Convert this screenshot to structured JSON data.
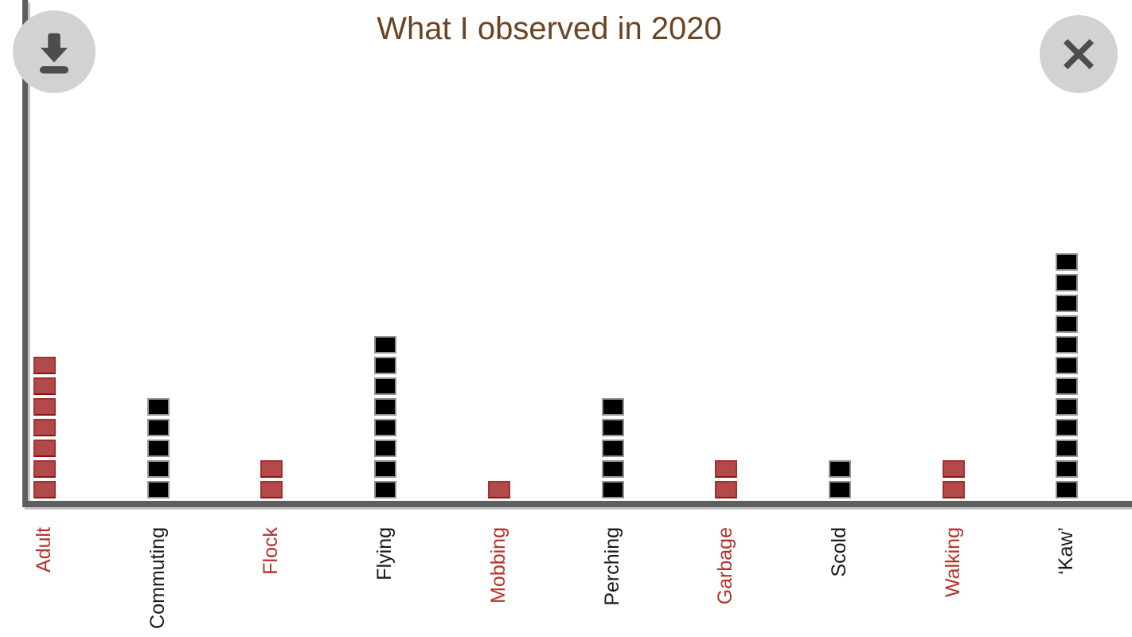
{
  "title": "What I observed in 2020",
  "toolbar": {
    "download_icon": "download-icon",
    "close_icon": "close-icon"
  },
  "colors": {
    "red": "#b24a4a",
    "red_border": "#a33030",
    "black": "#000000",
    "black_border": "#949494",
    "axis": "#5f5f5f",
    "title": "#6b4423",
    "label_red": "#b5332a",
    "label_black": "#1a1a1a",
    "button_bg": "#d2d2d2",
    "button_icon": "#4d4d4d"
  },
  "chart_data": {
    "type": "bar",
    "style": "waffle-stacked-squares",
    "title": "What I observed in 2020",
    "categories": [
      "Adult",
      "Commuting",
      "Flock",
      "Flying",
      "Mobbing",
      "Perching",
      "Garbage",
      "Scold",
      "Walking",
      "‘Kaw’"
    ],
    "values": [
      7,
      5,
      2,
      8,
      1,
      5,
      2,
      2,
      2,
      12
    ],
    "bar_colors": [
      "red",
      "black",
      "red",
      "black",
      "red",
      "black",
      "red",
      "black",
      "red",
      "black"
    ],
    "square_unit": 1,
    "ylabel": "",
    "xlabel": "",
    "legend": "none",
    "grid": "off"
  }
}
